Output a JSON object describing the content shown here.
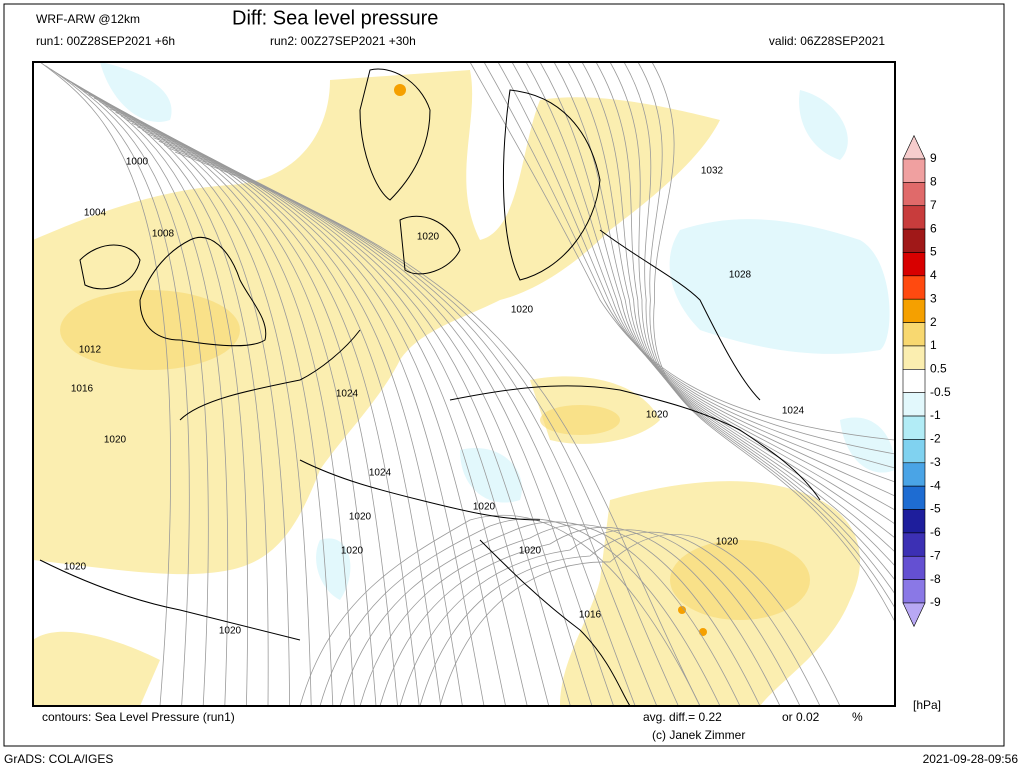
{
  "header": {
    "model": "WRF-ARW @12km",
    "title": "Diff: Sea level pressure",
    "run1": "run1: 00Z28SEP2021 +6h",
    "run2": "run2: 00Z27SEP2021 +30h",
    "valid": "valid: 06Z28SEP2021"
  },
  "map": {
    "contour_labels": [
      "1000",
      "1004",
      "1008",
      "1020",
      "1032",
      "1028",
      "1020",
      "1012",
      "1016",
      "1024",
      "1020",
      "1024",
      "1020",
      "1024",
      "1020",
      "1020",
      "1020",
      "1020",
      "1020",
      "1020",
      "1016",
      "1020"
    ]
  },
  "colorbar": {
    "labels": [
      "9",
      "8",
      "7",
      "6",
      "5",
      "4",
      "3",
      "2",
      "1",
      "0.5",
      "-0.5",
      "-1",
      "-2",
      "-3",
      "-4",
      "-5",
      "-6",
      "-7",
      "-8",
      "-9"
    ],
    "colors": [
      "#f6cccc",
      "#f0a0a0",
      "#e06a6a",
      "#c83c3c",
      "#a01818",
      "#d80000",
      "#ff4a10",
      "#f5a000",
      "#f8d870",
      "#fbeeb0",
      "#ffffff",
      "#e2f8fc",
      "#b2ecf6",
      "#80d2f0",
      "#4aa4e6",
      "#1e6cd2",
      "#1e1e9c",
      "#3c30b4",
      "#6450d2",
      "#8a78e6",
      "#b8a8f4"
    ],
    "unit": "[hPa]"
  },
  "footer": {
    "contours": "contours: Sea Level Pressure (run1)",
    "avg_diff": "avg. diff.= 0.22",
    "or_pct": "or 0.02",
    "pct_sign": "%",
    "credit": "(c) Janek Zimmer",
    "software": "GrADS: COLA/IGES",
    "timestamp": "2021-09-28-09:56"
  }
}
